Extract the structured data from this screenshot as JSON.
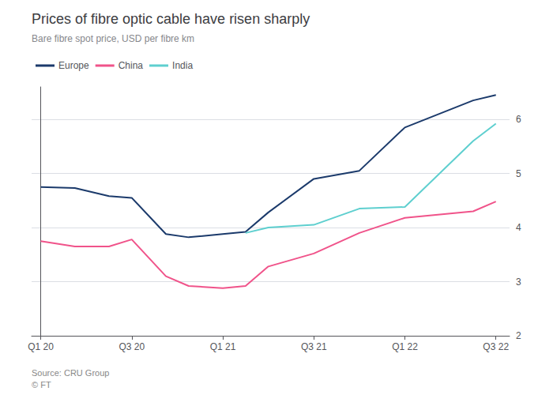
{
  "chart_data": {
    "type": "line",
    "title": "Prices of fibre optic cable have risen sharply",
    "subtitle": "Bare fibre spot price, USD per fibre km",
    "annotations": [
      "Source: CRU Group",
      "© FT"
    ],
    "x": [
      0,
      0.75,
      1.5,
      2,
      2.75,
      3.25,
      4,
      4.5,
      5,
      6,
      7,
      8,
      9.5,
      10
    ],
    "series": [
      {
        "name": "Europe",
        "color": "#1b3a6b",
        "values": [
          4.75,
          4.73,
          4.58,
          4.55,
          3.88,
          3.82,
          3.88,
          3.92,
          4.28,
          4.9,
          5.05,
          5.85,
          6.35,
          6.45
        ]
      },
      {
        "name": "China",
        "color": "#f0538a",
        "values": [
          3.75,
          3.65,
          3.65,
          3.78,
          3.1,
          2.92,
          2.88,
          2.92,
          3.28,
          3.52,
          3.9,
          4.18,
          4.3,
          4.48
        ]
      },
      {
        "name": "India",
        "color": "#5ecfcf",
        "values": [
          null,
          null,
          null,
          null,
          null,
          null,
          null,
          3.9,
          4.0,
          4.05,
          4.35,
          4.38,
          5.6,
          5.92
        ]
      }
    ],
    "xlim": [
      -0.2,
      10.3
    ],
    "xticks": [
      {
        "value": 0,
        "label": "Q1 20"
      },
      {
        "value": 2,
        "label": "Q3 20"
      },
      {
        "value": 4,
        "label": "Q1 21"
      },
      {
        "value": 6,
        "label": "Q3 21"
      },
      {
        "value": 8,
        "label": "Q1 22"
      },
      {
        "value": 10,
        "label": "Q3 22"
      }
    ],
    "ylim": [
      2,
      6.6
    ],
    "yticks": [
      2,
      3,
      4,
      5,
      6
    ],
    "grid": true,
    "legend": "upper left"
  }
}
